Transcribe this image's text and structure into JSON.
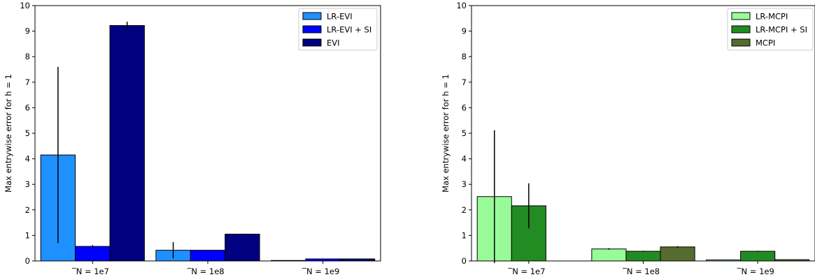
{
  "chart_data": [
    {
      "type": "bar",
      "ylabel": "Max entrywise error for h = 1",
      "xlabel": "",
      "ylim": [
        0,
        10
      ],
      "yticks": [
        "0",
        "1",
        "2",
        "3",
        "4",
        "5",
        "6",
        "7",
        "8",
        "9",
        "10"
      ],
      "categories": [
        "̅N = 1e7",
        "̅N = 1e8",
        "̅N = 1e9"
      ],
      "legend_position": "top-right",
      "grid": false,
      "series": [
        {
          "name": "LR-EVI",
          "color": "#1e90ff",
          "values": [
            4.15,
            0.42,
            0.02
          ],
          "errors": [
            3.45,
            0.32,
            0.0
          ]
        },
        {
          "name": "LR-EVI + SI",
          "color": "#0000ff",
          "values": [
            0.57,
            0.42,
            0.08
          ],
          "errors": [
            0.05,
            0.0,
            0.0
          ]
        },
        {
          "name": "EVI",
          "color": "#000080",
          "values": [
            9.22,
            1.05,
            0.08
          ],
          "errors": [
            0.15,
            0.02,
            0.0
          ]
        }
      ]
    },
    {
      "type": "bar",
      "ylabel": "Max entrywise error for h = 1",
      "xlabel": "",
      "ylim": [
        0,
        10
      ],
      "yticks": [
        "0",
        "1",
        "2",
        "3",
        "4",
        "5",
        "6",
        "7",
        "8",
        "9",
        "10"
      ],
      "categories": [
        "̅N = 1e7",
        "̅N = 1e8",
        "̅N = 1e9"
      ],
      "legend_position": "top-right",
      "grid": false,
      "series": [
        {
          "name": "LR-MCPI",
          "color": "#98fb98",
          "values": [
            2.52,
            0.47,
            0.04
          ],
          "errors": [
            2.6,
            0.03,
            0.0
          ]
        },
        {
          "name": "LR-MCPI + SI",
          "color": "#228b22",
          "values": [
            2.16,
            0.38,
            0.38
          ],
          "errors": [
            0.88,
            0.02,
            0.02
          ]
        },
        {
          "name": "MCPI",
          "color": "#556b2f",
          "values": [
            0.0,
            0.55,
            0.05
          ],
          "errors": [
            0.0,
            0.03,
            0.0
          ]
        }
      ]
    }
  ]
}
